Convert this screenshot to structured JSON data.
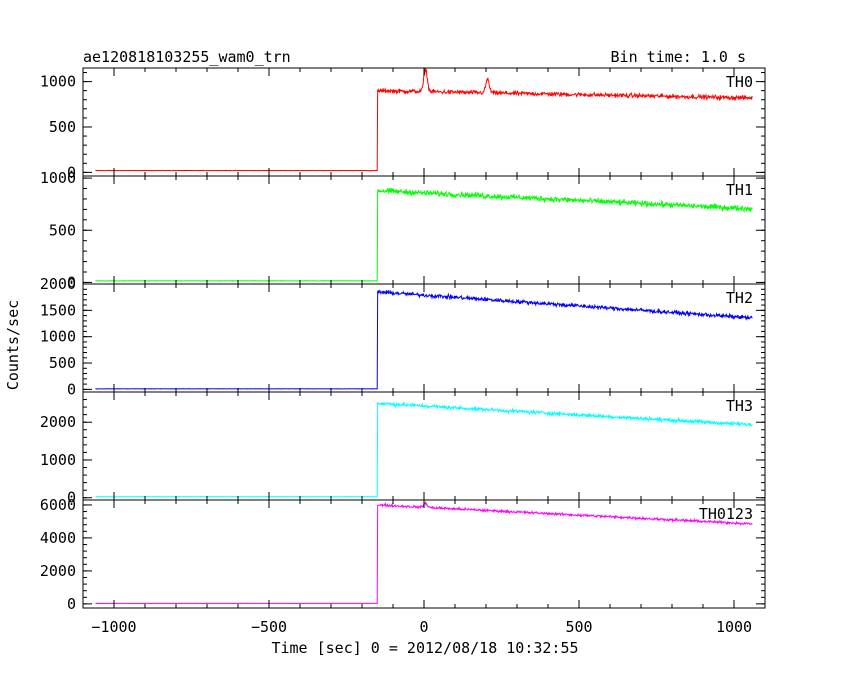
{
  "title": "ae120818103255_wam0_trn",
  "bin_time": "Bin time: 1.0 s",
  "ylabel": "Counts/sec",
  "xlabel": "Time [sec] 0 = 2012/08/18 10:32:55",
  "chart_data": {
    "type": "line",
    "x_range": [
      -1100,
      1100
    ],
    "x_ticks": [
      -1000,
      -500,
      0,
      500,
      1000
    ],
    "x_tick_labels": [
      "−1000",
      "−500",
      "0",
      "500",
      "1000"
    ],
    "trigger_time": -150,
    "time_span": [
      -1060,
      1060
    ],
    "grid": false,
    "panels": [
      {
        "label": "TH0",
        "color": "#ff0000",
        "ylim": [
          -40,
          1150
        ],
        "ticks": [
          0,
          500,
          1000
        ],
        "pre_level": 20,
        "peak_level": 900,
        "end_level": 820,
        "noise": 35,
        "flares": [
          {
            "t": 5,
            "amp": 250
          },
          {
            "t": 205,
            "amp": 150
          }
        ]
      },
      {
        "label": "TH1",
        "color": "#00ff00",
        "ylim": [
          -15,
          1020
        ],
        "ticks": [
          0,
          500,
          1000
        ],
        "pre_level": 15,
        "peak_level": 880,
        "end_level": 705,
        "noise": 40,
        "flares": []
      },
      {
        "label": "TH2",
        "color": "#0000ff",
        "ylim": [
          -50,
          2000
        ],
        "ticks": [
          0,
          500,
          1000,
          1500,
          2000
        ],
        "pre_level": 10,
        "peak_level": 1850,
        "end_level": 1355,
        "noise": 55,
        "flares": []
      },
      {
        "label": "TH3",
        "color": "#00ffff",
        "ylim": [
          -60,
          2800
        ],
        "ticks": [
          0,
          1000,
          2000
        ],
        "pre_level": 25,
        "peak_level": 2500,
        "end_level": 1930,
        "noise": 70,
        "flares": []
      },
      {
        "label": "TH0123",
        "color": "#ff00ff",
        "ylim": [
          -250,
          6300
        ],
        "ticks": [
          0,
          2000,
          4000,
          6000
        ],
        "pre_level": 30,
        "peak_level": 6000,
        "end_level": 4850,
        "noise": 110,
        "flares": [
          {
            "t": 5,
            "amp": 250
          }
        ]
      }
    ]
  }
}
